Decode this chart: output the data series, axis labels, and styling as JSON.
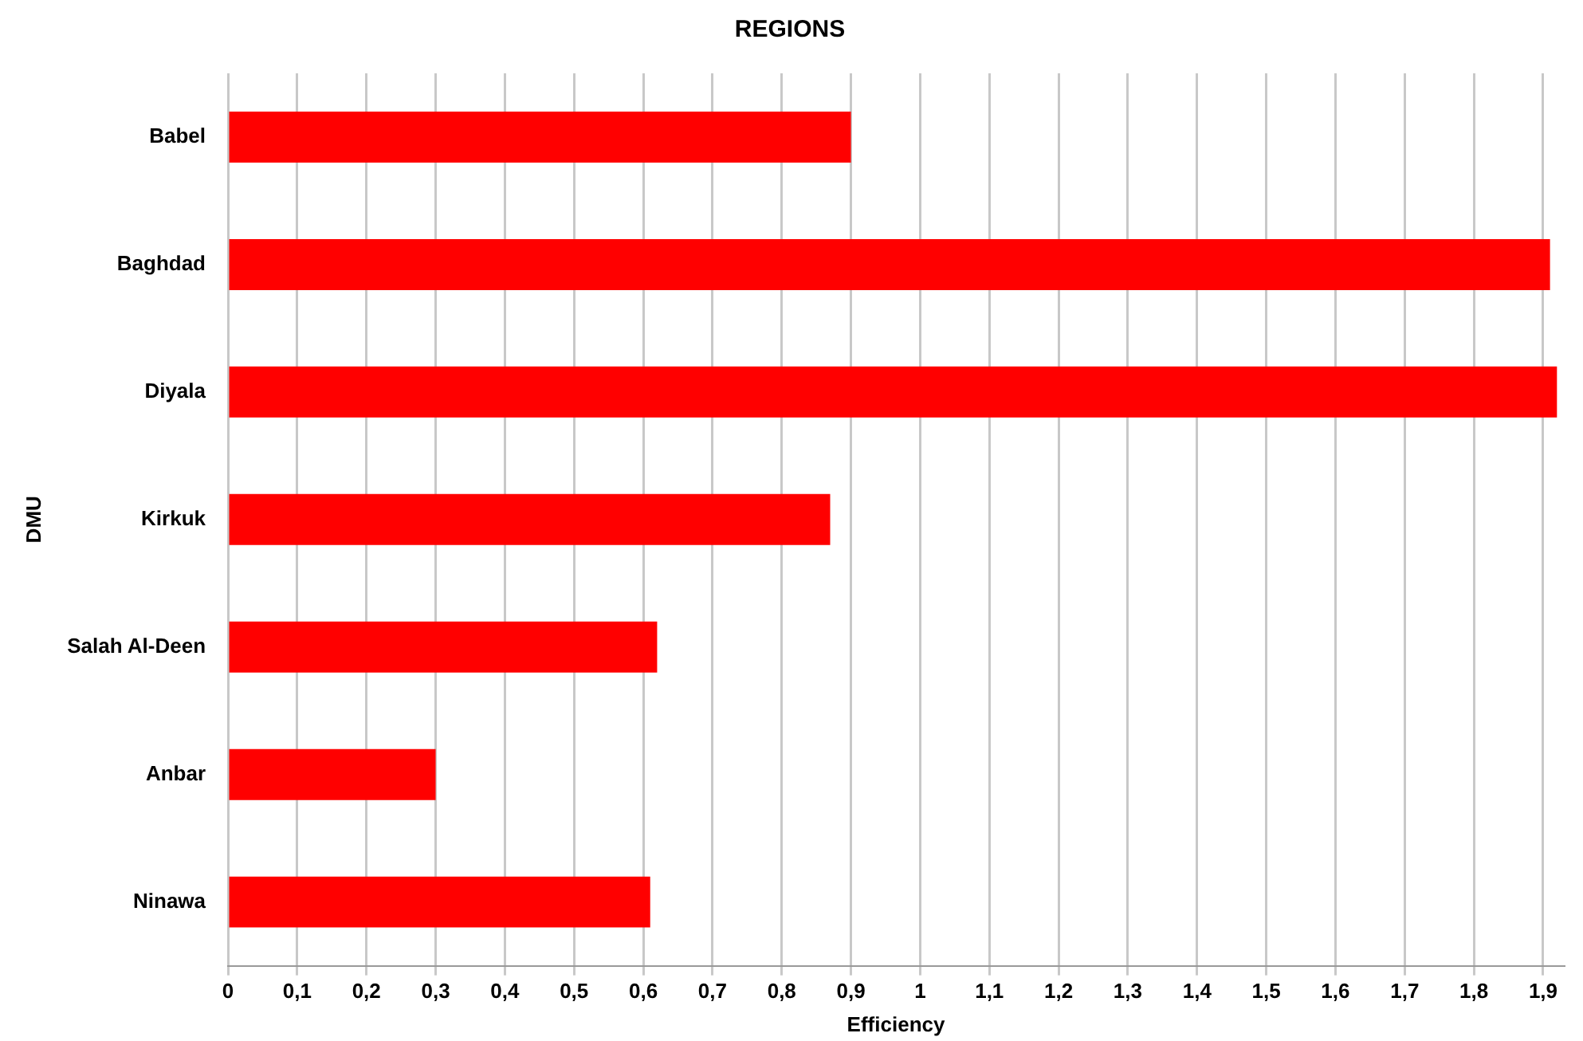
{
  "chart_data": {
    "type": "bar",
    "orientation": "horizontal",
    "title": "REGIONS",
    "xlabel": "Efficiency",
    "ylabel": "DMU",
    "categories": [
      "Babel",
      "Baghdad",
      "Diyala",
      "Kirkuk",
      "Salah Al-Deen",
      "Anbar",
      "Ninawa"
    ],
    "values": [
      0.9,
      1.91,
      1.92,
      0.87,
      0.62,
      0.3,
      0.61
    ],
    "color": "#ff0000",
    "xlim": [
      0,
      1.93
    ],
    "xticks": [
      0,
      {
        "value": 0.1,
        "label": "0,1"
      },
      {
        "value": 0.2,
        "label": "0,2"
      },
      {
        "value": 0.3,
        "label": "0,3"
      },
      {
        "value": 0.4,
        "label": "0,4"
      },
      {
        "value": 0.5,
        "label": "0,5"
      },
      {
        "value": 0.6,
        "label": "0,6"
      },
      {
        "value": 0.7,
        "label": "0,7"
      },
      {
        "value": 0.8,
        "label": "0,8"
      },
      {
        "value": 0.9,
        "label": "0,9"
      },
      1,
      {
        "value": 1.1,
        "label": "1,1"
      },
      {
        "value": 1.2,
        "label": "1,2"
      },
      {
        "value": 1.3,
        "label": "1,3"
      },
      {
        "value": 1.4,
        "label": "1,4"
      },
      {
        "value": 1.5,
        "label": "1,5"
      },
      {
        "value": 1.6,
        "label": "1,6"
      },
      {
        "value": 1.7,
        "label": "1,7"
      },
      {
        "value": 1.8,
        "label": "1,8"
      },
      {
        "value": 1.9,
        "label": "1,9"
      }
    ],
    "grid": "x",
    "legend": false
  }
}
